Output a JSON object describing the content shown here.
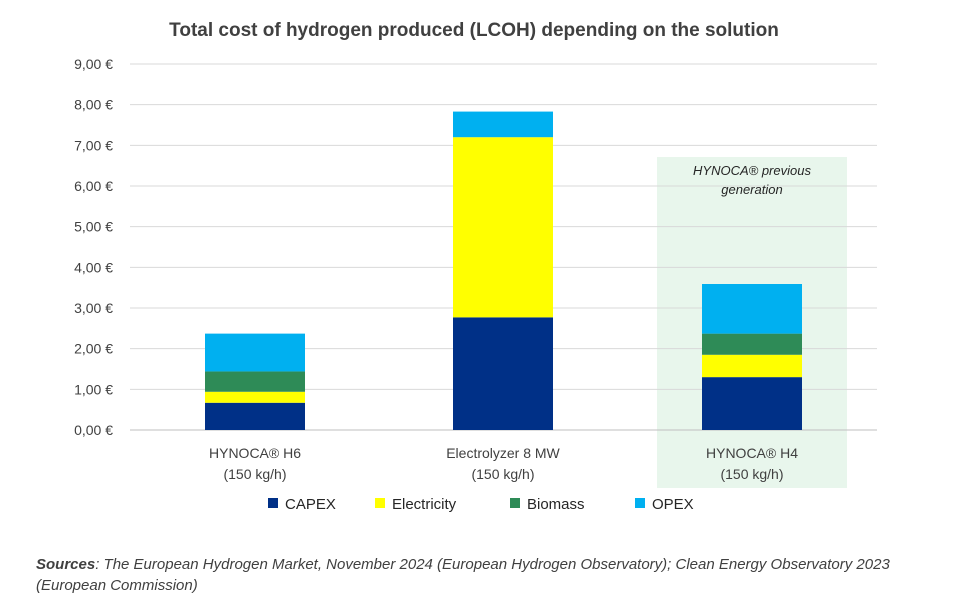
{
  "chart_data": {
    "type": "bar",
    "stacked": true,
    "title": "Total cost of hydrogen produced (LCOH) depending on the solution",
    "categories": [
      [
        "HYNOCA®  H6",
        "(150 kg/h)"
      ],
      [
        "Electrolyzer 8 MW",
        "(150 kg/h)"
      ],
      [
        "HYNOCA®  H4",
        "(150 kg/h)"
      ]
    ],
    "series": [
      {
        "name": "CAPEX",
        "color": "#003087",
        "values": [
          0.67,
          2.77,
          1.3
        ]
      },
      {
        "name": "Electricity",
        "color": "#FFFF00",
        "values": [
          0.27,
          4.43,
          0.55
        ]
      },
      {
        "name": "Biomass",
        "color": "#2E8B57",
        "values": [
          0.5,
          0,
          0.52
        ]
      },
      {
        "name": "OPEX",
        "color": "#00B0F0",
        "values": [
          0.93,
          0.63,
          1.22
        ]
      }
    ],
    "ylim": [
      0,
      9
    ],
    "yticks": [
      "0,00 €",
      "1,00 €",
      "2,00 €",
      "3,00 €",
      "4,00 €",
      "5,00 €",
      "6,00 €",
      "7,00 €",
      "8,00 €",
      "9,00 €"
    ],
    "grid": true,
    "legend_position": "bottom",
    "annotation": {
      "category_index": 2,
      "lines": [
        "HYNOCA® previous",
        "generation"
      ],
      "highlight_color": "#E8F6EC"
    }
  },
  "sources": {
    "label": "Sources",
    "text": ": The European Hydrogen Market, November 2024 (European Hydrogen Observatory); Clean Energy Observatory 2023 (European Commission)"
  }
}
